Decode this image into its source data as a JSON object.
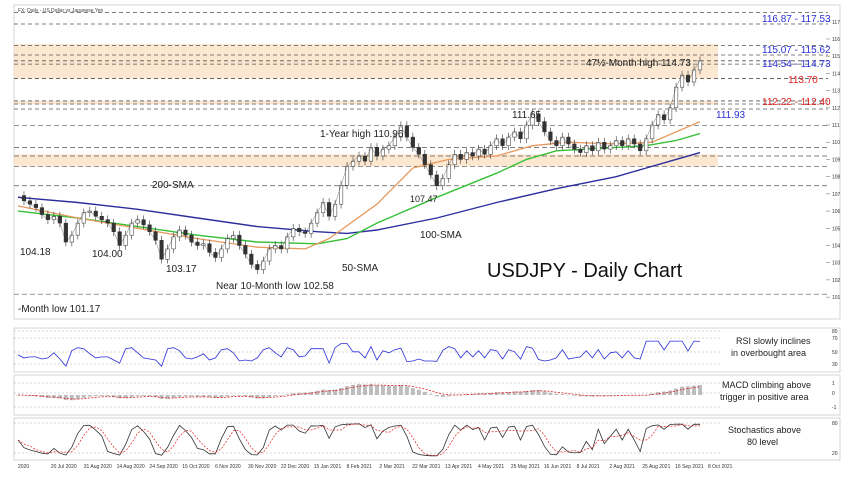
{
  "header": {
    "title": "FX: Daily - US Dollar vs Japanese Yen"
  },
  "colors": {
    "blue": "#2a2fd6",
    "red": "#e02020",
    "green": "#33cc33",
    "orange": "#f0a060",
    "zone": "#fbe3c8",
    "price": "#333333",
    "sma200": "#2b2f9e",
    "sma100": "#38c038",
    "sma50": "#e89a60"
  },
  "chart_data": {
    "type": "candlestick",
    "title": "USDJPY - Daily Chart",
    "instrument": "USDJPY",
    "timeframe": "Daily",
    "x_labels": [
      "2020",
      "20 Jul 2020",
      "31 Aug 2020",
      "14 Aug 2020",
      "24 Sep 2020",
      "15 Oct 2020",
      "6 Nov 2020",
      "30 Nov 2020",
      "22 Dec 2020",
      "15 Jan 2021",
      "8 Feb 2021",
      "2 Mar 2021",
      "22 Mar 2021",
      "13 Apr 2021",
      "4 May 2021",
      "25 May 2021",
      "16 Jun 2021",
      "8 Jul 2021",
      "2 Aug 2021",
      "25 Aug 2021",
      "16 Sep 2021",
      "8 Oct 2021"
    ],
    "y_ticks": [
      117,
      116,
      115,
      114,
      113,
      112,
      111,
      110,
      109,
      108,
      107,
      106,
      105,
      104,
      103,
      102,
      101
    ],
    "ylim": [
      100.6,
      117.8
    ],
    "close_path": [
      [
        0,
        106.9
      ],
      [
        1,
        106.6
      ],
      [
        2,
        106.4
      ],
      [
        3,
        106.2
      ],
      [
        4,
        105.8
      ],
      [
        5,
        105.5
      ],
      [
        6,
        105.7
      ],
      [
        7,
        105.3
      ],
      [
        8,
        104.2
      ],
      [
        9,
        104.6
      ],
      [
        10,
        105.3
      ],
      [
        11,
        105.9
      ],
      [
        12,
        106.0
      ],
      [
        13,
        105.7
      ],
      [
        14,
        105.5
      ],
      [
        15,
        105.3
      ],
      [
        16,
        104.8
      ],
      [
        17,
        104.0
      ],
      [
        18,
        104.6
      ],
      [
        19,
        105.3
      ],
      [
        20,
        105.5
      ],
      [
        21,
        105.2
      ],
      [
        22,
        104.8
      ],
      [
        23,
        104.3
      ],
      [
        24,
        103.2
      ],
      [
        25,
        103.8
      ],
      [
        26,
        104.5
      ],
      [
        27,
        104.9
      ],
      [
        28,
        104.6
      ],
      [
        29,
        104.2
      ],
      [
        30,
        104.0
      ],
      [
        31,
        104.1
      ],
      [
        32,
        103.6
      ],
      [
        33,
        103.3
      ],
      [
        34,
        103.8
      ],
      [
        35,
        104.4
      ],
      [
        36,
        104.6
      ],
      [
        37,
        104.0
      ],
      [
        38,
        103.5
      ],
      [
        39,
        102.9
      ],
      [
        40,
        102.6
      ],
      [
        41,
        103.1
      ],
      [
        42,
        103.8
      ],
      [
        43,
        104.0
      ],
      [
        44,
        103.8
      ],
      [
        45,
        104.5
      ],
      [
        46,
        105.0
      ],
      [
        47,
        104.8
      ],
      [
        48,
        104.7
      ],
      [
        49,
        105.3
      ],
      [
        50,
        105.9
      ],
      [
        51,
        106.5
      ],
      [
        52,
        105.7
      ],
      [
        53,
        106.4
      ],
      [
        54,
        107.5
      ],
      [
        55,
        108.6
      ],
      [
        56,
        108.9
      ],
      [
        57,
        109.2
      ],
      [
        58,
        108.9
      ],
      [
        59,
        109.7
      ],
      [
        60,
        109.2
      ],
      [
        61,
        109.6
      ],
      [
        62,
        109.8
      ],
      [
        63,
        110.3
      ],
      [
        64,
        110.96
      ],
      [
        65,
        110.3
      ],
      [
        66,
        109.7
      ],
      [
        67,
        109.3
      ],
      [
        68,
        108.7
      ],
      [
        69,
        108.1
      ],
      [
        70,
        107.47
      ],
      [
        71,
        107.9
      ],
      [
        72,
        108.7
      ],
      [
        73,
        109.3
      ],
      [
        74,
        109.0
      ],
      [
        75,
        109.4
      ],
      [
        76,
        109.2
      ],
      [
        77,
        109.6
      ],
      [
        78,
        109.3
      ],
      [
        79,
        109.8
      ],
      [
        80,
        110.2
      ],
      [
        81,
        109.8
      ],
      [
        82,
        110.3
      ],
      [
        83,
        110.6
      ],
      [
        84,
        110.2
      ],
      [
        85,
        111.0
      ],
      [
        86,
        111.65
      ],
      [
        87,
        111.2
      ],
      [
        88,
        110.6
      ],
      [
        89,
        110.1
      ],
      [
        90,
        109.8
      ],
      [
        91,
        110.3
      ],
      [
        92,
        109.9
      ],
      [
        93,
        109.6
      ],
      [
        94,
        109.4
      ],
      [
        95,
        109.8
      ],
      [
        96,
        109.5
      ],
      [
        97,
        110.0
      ],
      [
        98,
        109.6
      ],
      [
        99,
        109.8
      ],
      [
        100,
        110.1
      ],
      [
        101,
        109.8
      ],
      [
        102,
        110.2
      ],
      [
        103,
        109.9
      ],
      [
        104,
        109.5
      ],
      [
        105,
        110.2
      ],
      [
        106,
        111.0
      ],
      [
        107,
        111.6
      ],
      [
        108,
        111.3
      ],
      [
        109,
        112.0
      ],
      [
        110,
        113.2
      ],
      [
        111,
        113.9
      ],
      [
        112,
        113.5
      ],
      [
        113,
        114.2
      ],
      [
        114,
        114.73
      ]
    ],
    "sma200_path": [
      [
        0,
        106.8
      ],
      [
        10,
        106.5
      ],
      [
        20,
        106.1
      ],
      [
        30,
        105.6
      ],
      [
        40,
        105.1
      ],
      [
        50,
        104.8
      ],
      [
        55,
        104.7
      ],
      [
        60,
        104.9
      ],
      [
        70,
        105.6
      ],
      [
        80,
        106.5
      ],
      [
        90,
        107.3
      ],
      [
        100,
        108.0
      ],
      [
        105,
        108.5
      ],
      [
        110,
        109.0
      ],
      [
        114,
        109.4
      ]
    ],
    "sma100_path": [
      [
        0,
        106.0
      ],
      [
        10,
        105.6
      ],
      [
        20,
        105.1
      ],
      [
        30,
        104.6
      ],
      [
        40,
        104.2
      ],
      [
        50,
        104.1
      ],
      [
        55,
        104.4
      ],
      [
        60,
        105.3
      ],
      [
        70,
        106.8
      ],
      [
        80,
        108.2
      ],
      [
        85,
        109.0
      ],
      [
        90,
        109.5
      ],
      [
        100,
        109.7
      ],
      [
        105,
        109.8
      ],
      [
        110,
        110.1
      ],
      [
        114,
        110.5
      ]
    ],
    "sma50_path": [
      [
        0,
        106.3
      ],
      [
        10,
        105.6
      ],
      [
        20,
        105.0
      ],
      [
        30,
        104.4
      ],
      [
        40,
        103.9
      ],
      [
        48,
        103.8
      ],
      [
        52,
        104.4
      ],
      [
        60,
        106.4
      ],
      [
        66,
        108.5
      ],
      [
        72,
        109.0
      ],
      [
        80,
        109.2
      ],
      [
        86,
        109.8
      ],
      [
        92,
        110.0
      ],
      [
        100,
        109.9
      ],
      [
        106,
        110.0
      ],
      [
        110,
        110.6
      ],
      [
        114,
        111.2
      ]
    ],
    "support_resistance": [
      {
        "label": "116.87 - 117.53",
        "values": [
          116.87,
          117.53
        ],
        "color": "blue"
      },
      {
        "label": "115.07 - 115.62",
        "values": [
          115.07,
          115.62
        ],
        "color": "blue"
      },
      {
        "label": "114.54 - 114.73",
        "values": [
          114.54,
          114.73
        ],
        "color": "blue"
      },
      {
        "label": "113.70",
        "values": [
          113.7
        ],
        "color": "red"
      },
      {
        "label": "112.22 - 112.40",
        "values": [
          112.22,
          112.4
        ],
        "color": "red"
      },
      {
        "label": "111.93",
        "values": [
          111.93
        ],
        "color": "blue"
      }
    ],
    "dotted_levels": [
      110.96,
      109.7,
      109.2,
      108.6,
      107.47,
      101.17
    ],
    "zones": [
      [
        113.7,
        115.7
      ],
      [
        112.2,
        112.4
      ],
      [
        108.6,
        109.3
      ]
    ],
    "annotations": {
      "month_high": "47½-Month high 114.73",
      "year_high": "1-Year high 110.96",
      "high_11165": "111.65",
      "low_10747": "107.47",
      "sma200": "200-SMA",
      "sma100": "100-SMA",
      "sma50": "50-SMA",
      "low_10418": "104.18",
      "low_10400": "104.00",
      "low_10317": "103.17",
      "near_low": "Near 10-Month low 102.58",
      "month_low": "-Month low 101.17"
    },
    "indicators": [
      {
        "name": "RSI",
        "legend": "RSI slowly inclines in overbought area",
        "lines": [
          "RSI slowly inclines",
          "in overbought area"
        ],
        "ticks": [
          80,
          70,
          50,
          30
        ]
      },
      {
        "name": "MACD",
        "legend": "MACD climbing above trigger in positive area",
        "lines": [
          "MACD climbing above",
          "trigger in positive area"
        ],
        "ticks": [
          1,
          0,
          -1
        ]
      },
      {
        "name": "Stochastics",
        "legend": "Stochastics above 80 level",
        "lines": [
          "Stochastics above",
          "80 level"
        ],
        "ticks": [
          80,
          20
        ]
      }
    ]
  }
}
